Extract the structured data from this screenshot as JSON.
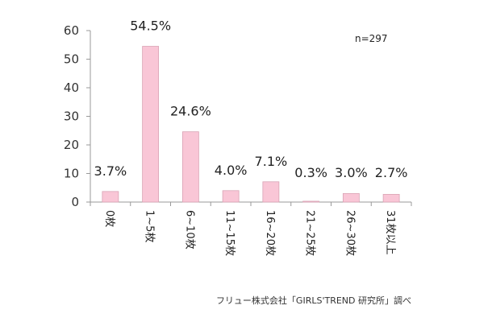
{
  "chart_data": {
    "type": "bar",
    "categories": [
      "0枚",
      "1~5枚",
      "6~10枚",
      "11~15枚",
      "16~20枚",
      "21~25枚",
      "26~30枚",
      "31枚以上"
    ],
    "values": [
      3.7,
      54.5,
      24.6,
      4.0,
      7.1,
      0.3,
      3.0,
      2.7
    ],
    "data_labels": [
      "3.7%",
      "54.5%",
      "24.6%",
      "4.0%",
      "7.1%",
      "0.3%",
      "3.0%",
      "2.7%"
    ],
    "yticks": [
      0,
      10,
      20,
      30,
      40,
      50,
      60
    ],
    "ylim": [
      0,
      60
    ],
    "grid": false,
    "title": "",
    "xlabel": "",
    "ylabel": ""
  },
  "sample_note": "n=297",
  "source_note": "フリュー株式会社「GIRLS'TREND 研究所」調べ",
  "colors": {
    "bar_fill": "#F9C6D6",
    "bar_stroke": "#D9A3B4",
    "axis": "#999999"
  }
}
